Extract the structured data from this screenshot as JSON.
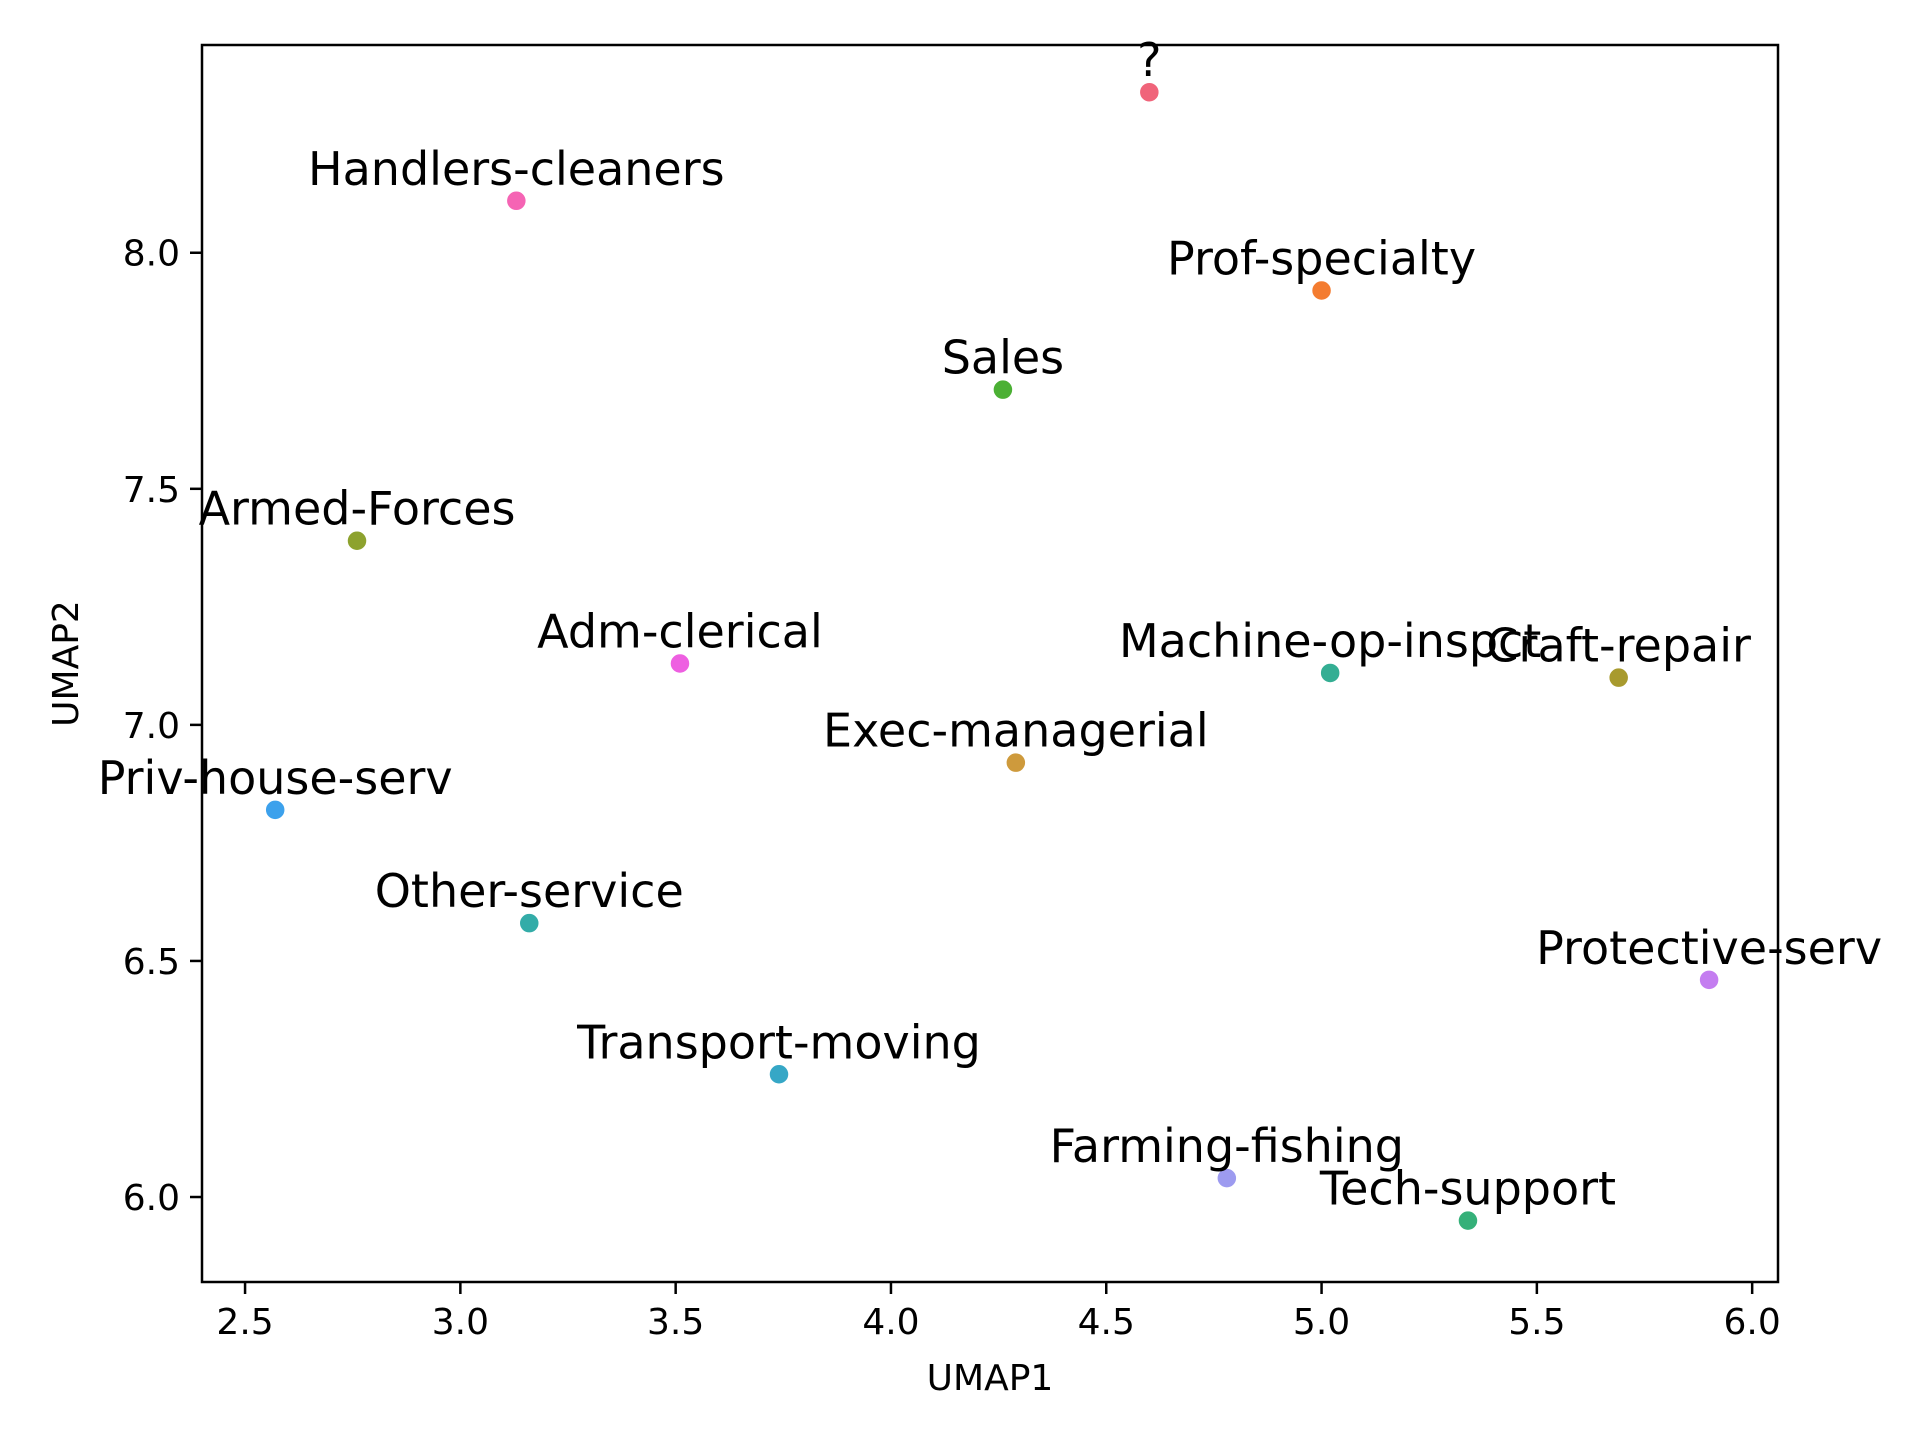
{
  "chart_data": {
    "type": "scatter",
    "title": "",
    "xlabel": "UMAP1",
    "ylabel": "UMAP2",
    "xlim": [
      2.4,
      6.06
    ],
    "ylim": [
      5.82,
      8.44
    ],
    "xticks": [
      2.5,
      3.0,
      3.5,
      4.0,
      4.5,
      5.0,
      5.5,
      6.0
    ],
    "xtick_labels": [
      "2.5",
      "3.0",
      "3.5",
      "4.0",
      "4.5",
      "5.0",
      "5.5",
      "6.0"
    ],
    "yticks": [
      6.0,
      6.5,
      7.0,
      7.5,
      8.0
    ],
    "ytick_labels": [
      "6.0",
      "6.5",
      "7.0",
      "7.5",
      "8.0"
    ],
    "grid": false,
    "legend": false,
    "points": [
      {
        "label": "?",
        "x": 4.6,
        "y": 8.34,
        "color": "#f0647a"
      },
      {
        "label": "Handlers-cleaners",
        "x": 3.13,
        "y": 8.11,
        "color": "#f564b4"
      },
      {
        "label": "Prof-specialty",
        "x": 5.0,
        "y": 7.92,
        "color": "#f47c30"
      },
      {
        "label": "Sales",
        "x": 4.26,
        "y": 7.71,
        "color": "#4bb034"
      },
      {
        "label": "Armed-Forces",
        "x": 2.76,
        "y": 7.39,
        "color": "#8da22e"
      },
      {
        "label": "Adm-clerical",
        "x": 3.51,
        "y": 7.13,
        "color": "#ee5fe1"
      },
      {
        "label": "Machine-op-inspct",
        "x": 5.02,
        "y": 7.11,
        "color": "#34ae93"
      },
      {
        "label": "Craft-repair",
        "x": 5.69,
        "y": 7.1,
        "color": "#a89a2e"
      },
      {
        "label": "Exec-managerial",
        "x": 4.29,
        "y": 6.92,
        "color": "#ce9a3c"
      },
      {
        "label": "Priv-house-serv",
        "x": 2.57,
        "y": 6.82,
        "color": "#3ca1ec"
      },
      {
        "label": "Other-service",
        "x": 3.16,
        "y": 6.58,
        "color": "#33aca8"
      },
      {
        "label": "Protective-serv",
        "x": 5.9,
        "y": 6.46,
        "color": "#c47df0"
      },
      {
        "label": "Transport-moving",
        "x": 3.74,
        "y": 6.26,
        "color": "#36a7c6"
      },
      {
        "label": "Farming-fishing",
        "x": 4.78,
        "y": 6.04,
        "color": "#9d9bf0"
      },
      {
        "label": "Tech-support",
        "x": 5.34,
        "y": 5.95,
        "color": "#35b079"
      }
    ]
  }
}
